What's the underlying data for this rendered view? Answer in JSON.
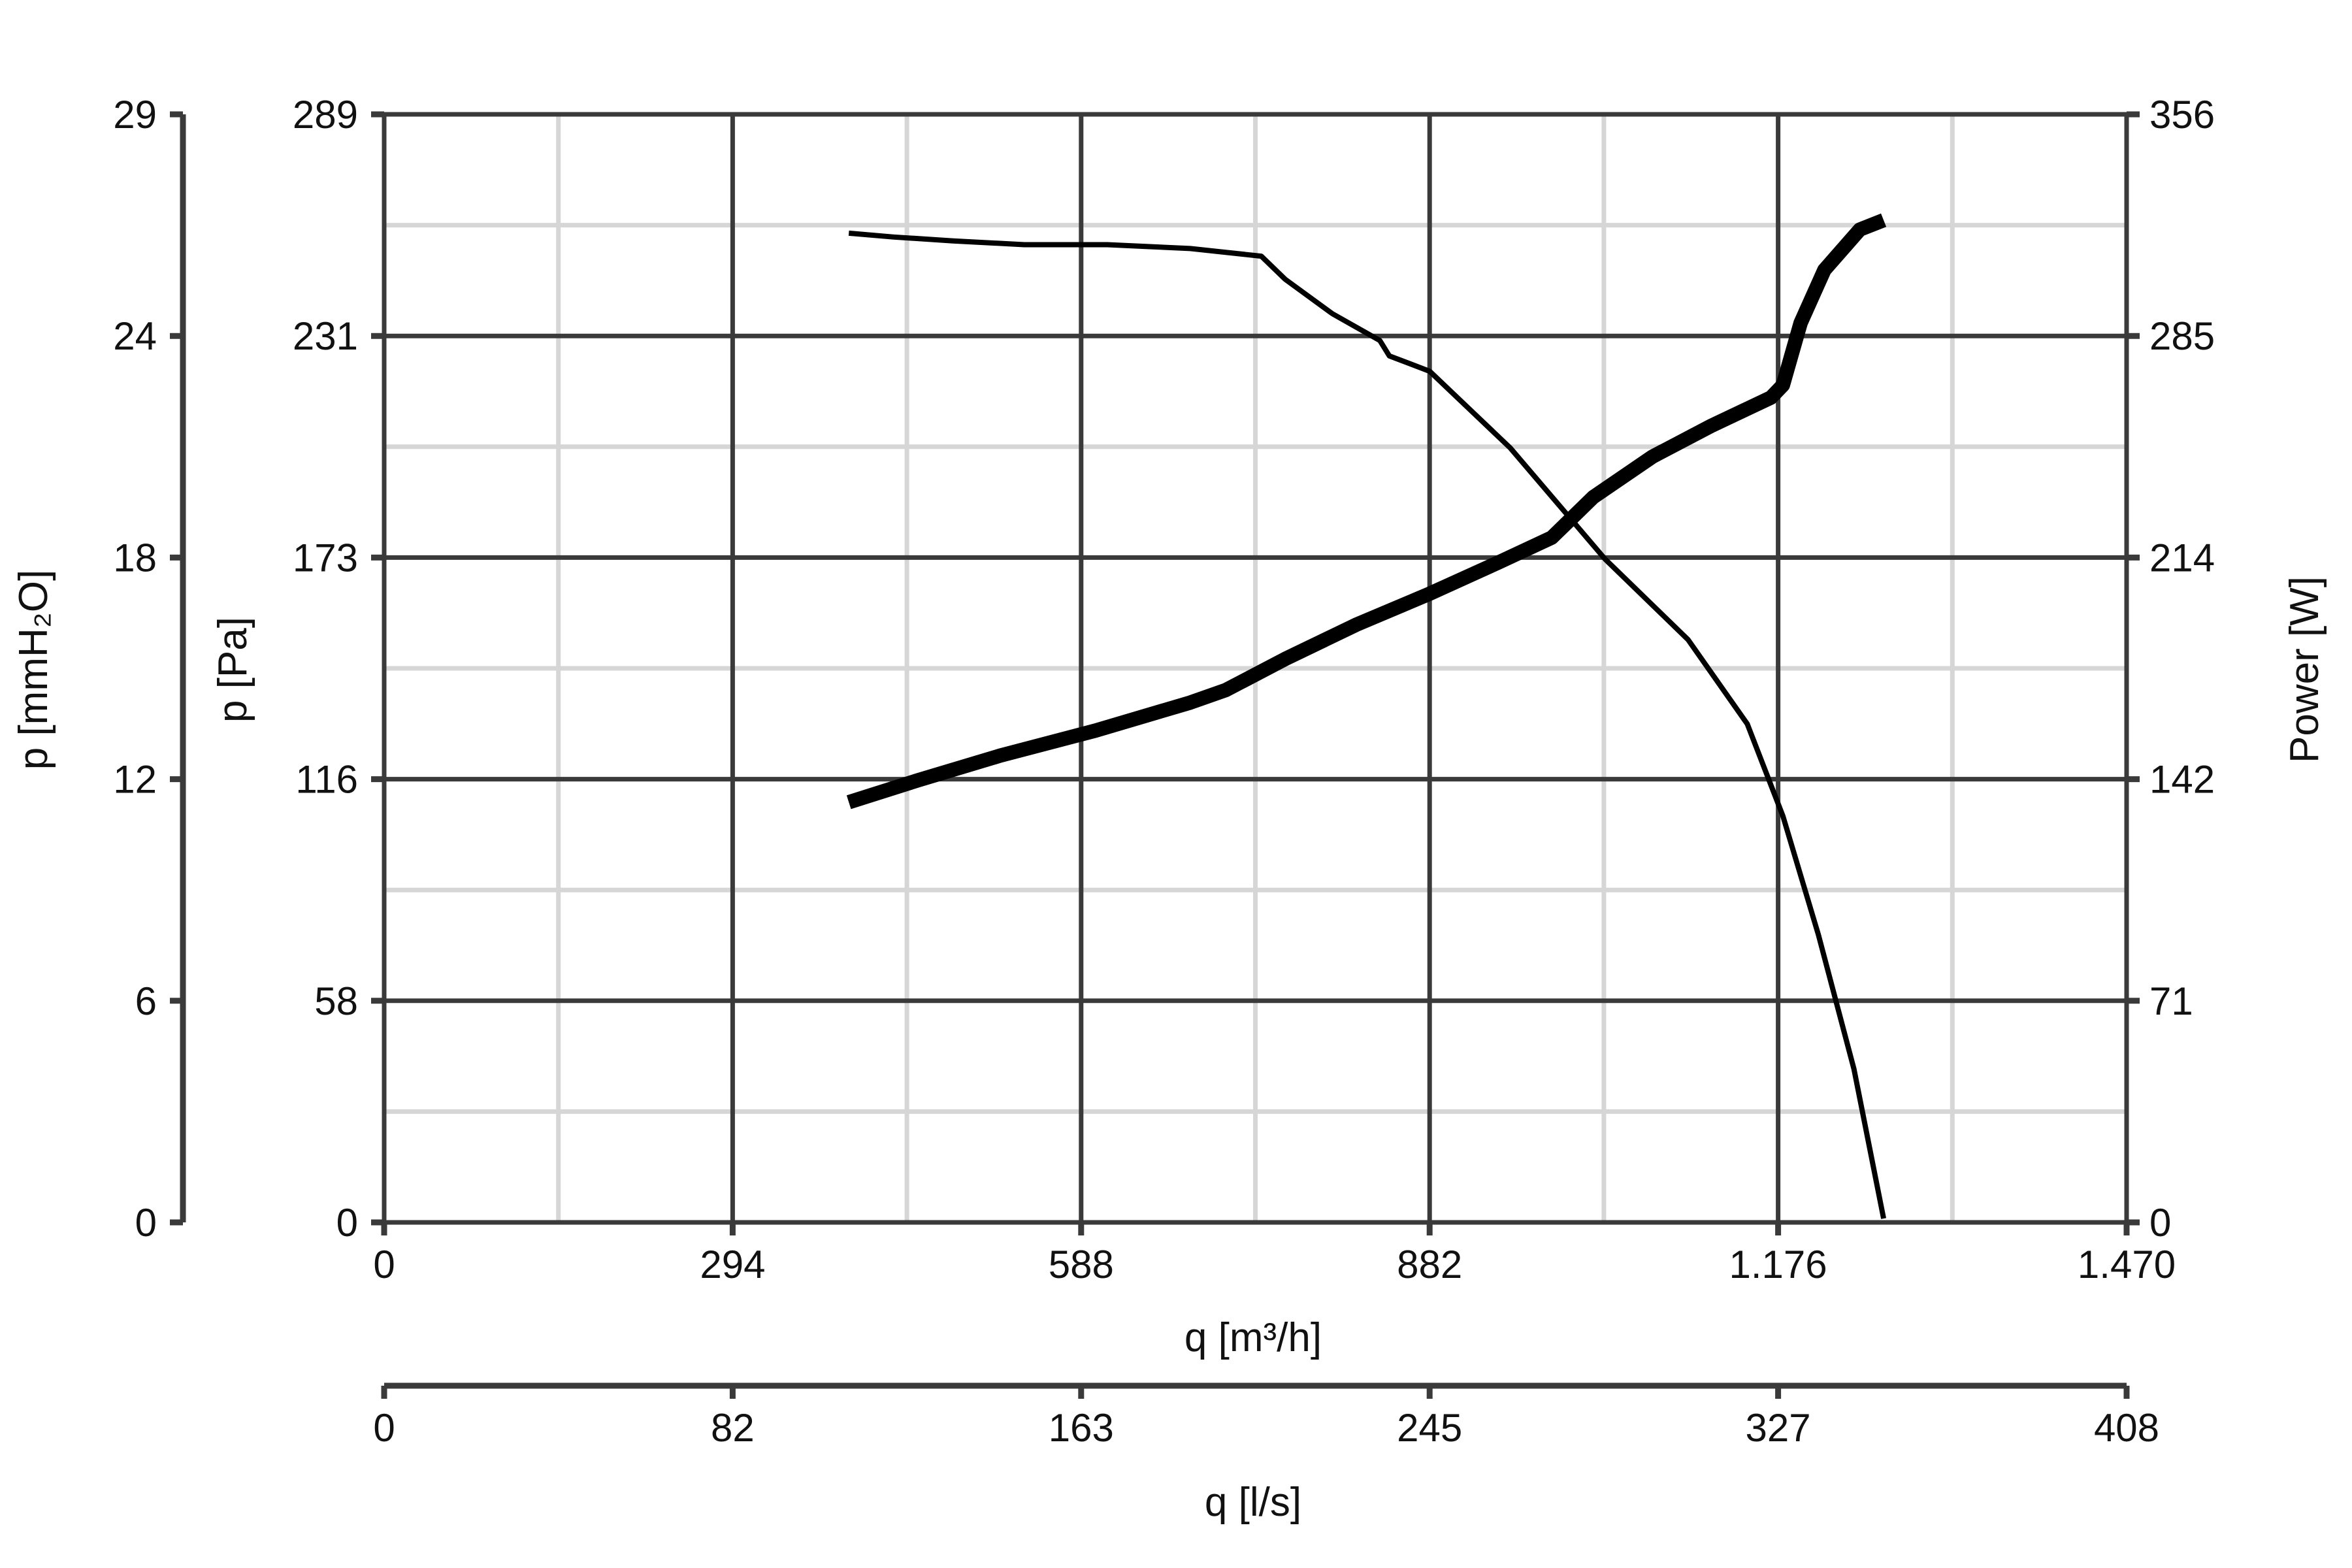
{
  "chart_data": {
    "type": "line",
    "x_axes": [
      {
        "label": "q [m³/h]",
        "range": [
          0,
          1470
        ],
        "ticks": [
          "0",
          "294",
          "588",
          "882",
          "1.176",
          "1.470"
        ]
      },
      {
        "label": "q [l/s]",
        "range": [
          0,
          408
        ],
        "ticks": [
          "0",
          "82",
          "163",
          "245",
          "327",
          "408"
        ]
      }
    ],
    "y_axes": [
      {
        "label": "p [mmH₂O]",
        "range": [
          0,
          29
        ],
        "ticks": [
          "0",
          "6",
          "12",
          "18",
          "24",
          "29"
        ]
      },
      {
        "label": "p [Pa]",
        "range": [
          0,
          289
        ],
        "ticks": [
          "0",
          "58",
          "116",
          "173",
          "231",
          "289"
        ]
      },
      {
        "label": "Power [W]",
        "range": [
          0,
          356
        ],
        "ticks": [
          "0",
          "71",
          "142",
          "214",
          "285",
          "356"
        ]
      }
    ],
    "grid": true,
    "series": [
      {
        "name": "",
        "axis": "p [Pa]",
        "stroke": "thin",
        "x": [
          392,
          430,
          480,
          540,
          610,
          680,
          740,
          760,
          800,
          840,
          848,
          882,
          950,
          1030,
          1100,
          1150,
          1180,
          1210,
          1240,
          1265
        ],
        "y": [
          258,
          257,
          256,
          255,
          255,
          254,
          252,
          246,
          237,
          230,
          226,
          222,
          202,
          173,
          152,
          130,
          106,
          75,
          40,
          1
        ]
      },
      {
        "name": "",
        "axis": "Power [W]",
        "stroke": "thick",
        "x": [
          392,
          450,
          520,
          600,
          680,
          710,
          760,
          820,
          882,
          940,
          985,
          1020,
          1070,
          1120,
          1170,
          1180,
          1195,
          1215,
          1245,
          1265
        ],
        "y": [
          135,
          142,
          150,
          158,
          167,
          171,
          181,
          192,
          202,
          212,
          220,
          233,
          246,
          256,
          265,
          269,
          289,
          306,
          319,
          322
        ]
      }
    ]
  }
}
